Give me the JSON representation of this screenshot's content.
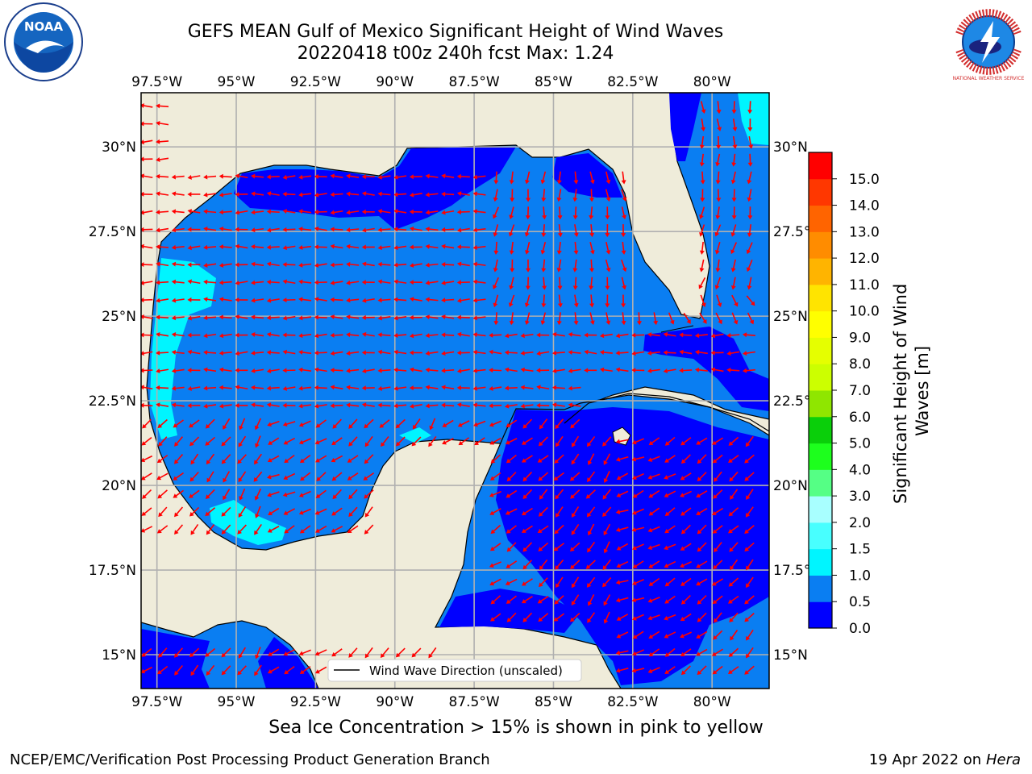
{
  "title": {
    "line1": "GEFS MEAN Gulf of Mexico Significant Height of Wind Waves",
    "line2": "20220418 t00z 240h fcst   Max: 1.24"
  },
  "logos": {
    "left": "noaa-logo",
    "left_text": "NOAA",
    "right": "nws-logo",
    "right_text": "NATIONAL WEATHER SERVICE"
  },
  "map": {
    "lon_ticks": [
      "97.5°W",
      "95°W",
      "92.5°W",
      "90°W",
      "87.5°W",
      "85°W",
      "82.5°W",
      "80°W"
    ],
    "lat_ticks": [
      "30°N",
      "27.5°N",
      "25°N",
      "22.5°N",
      "20°N",
      "17.5°N",
      "15°N"
    ],
    "lon_values": [
      -97.5,
      -95,
      -92.5,
      -90,
      -87.5,
      -85,
      -82.5,
      -80
    ],
    "lat_values": [
      30,
      27.5,
      25,
      22.5,
      20,
      17.5,
      15
    ],
    "extent": {
      "lon_min": -98,
      "lon_max": -78.2,
      "lat_min": 14,
      "lat_max": 31.6
    },
    "legend_label": "Wind Wave Direction (unscaled)",
    "colors": {
      "land": "#efecda",
      "coast": "#000000",
      "arrow": "#ff0000",
      "grid": "#b0b0b0"
    }
  },
  "colorbar": {
    "label": "Significant Height of Wind Waves [m]",
    "label_lines": [
      "Significant Height of Wind",
      "Waves [m]"
    ],
    "ticks": [
      "0.0",
      "0.5",
      "1.0",
      "1.5",
      "2.0",
      "3.0",
      "4.0",
      "5.0",
      "6.0",
      "7.0",
      "8.0",
      "9.0",
      "10.0",
      "11.0",
      "12.0",
      "13.0",
      "14.0",
      "15.0"
    ],
    "colors": [
      "#0000ff",
      "#0a7ef2",
      "#00f5ff",
      "#48ffff",
      "#a8ffff",
      "#55ff85",
      "#1dff1d",
      "#0acf0a",
      "#8fe600",
      "#ccff00",
      "#e5ff00",
      "#ffff00",
      "#ffe400",
      "#ffb400",
      "#ff8c00",
      "#ff6400",
      "#ff3700",
      "#ff0000"
    ]
  },
  "ice_note": "Sea Ice Concentration > 15% is shown in pink to yellow",
  "footer": {
    "left": "NCEP/EMC/Verification Post Processing Product Generation Branch",
    "right_prefix": "19 Apr 2022 on ",
    "right_host": "Hera"
  }
}
